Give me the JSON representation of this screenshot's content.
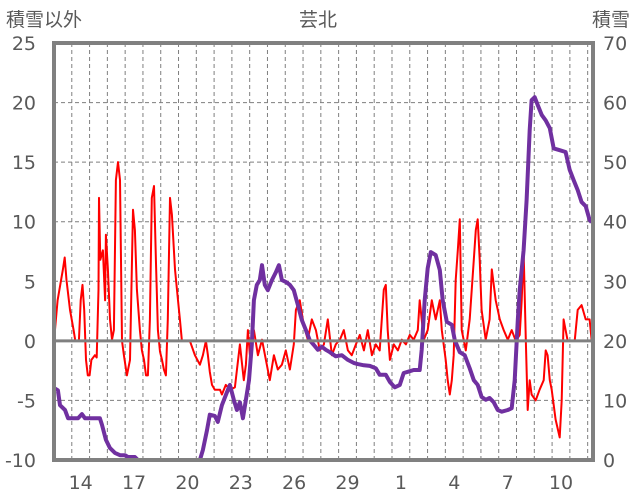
{
  "chart_data": {
    "type": "line",
    "title": "芸北",
    "ylabel_left": "積雪以外",
    "ylabel_right": "積雪",
    "ylim_left": [
      -10,
      25
    ],
    "ylim_right": [
      0,
      70
    ],
    "yticks_left": [
      "25",
      "20",
      "15",
      "10",
      "5",
      "0",
      "-5",
      "-10"
    ],
    "yticks_left_values": [
      25,
      20,
      15,
      10,
      5,
      0,
      -5,
      -10
    ],
    "yticks_right": [
      "70",
      "60",
      "50",
      "40",
      "30",
      "20",
      "10",
      "0"
    ],
    "yticks_right_values": [
      70,
      60,
      50,
      40,
      30,
      20,
      10,
      0
    ],
    "xlim": [
      0.5,
      30.8
    ],
    "xticks": [
      {
        "label": "14",
        "day": 2
      },
      {
        "label": "17",
        "day": 5
      },
      {
        "label": "20",
        "day": 8
      },
      {
        "label": "23",
        "day": 11
      },
      {
        "label": "26",
        "day": 14
      },
      {
        "label": "29",
        "day": 17
      },
      {
        "label": "1",
        "day": 20
      },
      {
        "label": "4",
        "day": 23
      },
      {
        "label": "7",
        "day": 26
      },
      {
        "label": "10",
        "day": 29
      }
    ],
    "grid": true,
    "colors": {
      "other": "#ff0000",
      "snow": "#7030a0",
      "axis": "#808080",
      "grid": "#7f7f7f",
      "text": "#595959"
    },
    "series": [
      {
        "name": "積雪以外",
        "axis": "left",
        "points": [
          [
            0.5,
            0
          ],
          [
            0.7,
            3.4
          ],
          [
            1.0,
            6
          ],
          [
            1.1,
            7
          ],
          [
            1.2,
            5.1
          ],
          [
            1.4,
            2.6
          ],
          [
            1.6,
            0.9
          ],
          [
            1.7,
            0
          ],
          [
            1.9,
            0
          ],
          [
            2.0,
            3.4
          ],
          [
            2.1,
            4.7
          ],
          [
            2.2,
            2.6
          ],
          [
            2.3,
            -1.6
          ],
          [
            2.4,
            -2.9
          ],
          [
            2.5,
            -2.9
          ],
          [
            2.6,
            -1.6
          ],
          [
            2.8,
            -1.2
          ],
          [
            2.9,
            -1.4
          ],
          [
            3.0,
            4.3
          ],
          [
            3.03,
            12
          ],
          [
            3.1,
            6.8
          ],
          [
            3.25,
            7.6
          ],
          [
            3.37,
            3.4
          ],
          [
            3.42,
            8.9
          ],
          [
            3.53,
            6
          ],
          [
            3.65,
            1.8
          ],
          [
            3.76,
            0.1
          ],
          [
            3.87,
            0.9
          ],
          [
            3.98,
            13.5
          ],
          [
            4.1,
            15
          ],
          [
            4.21,
            13.5
          ],
          [
            4.32,
            0
          ],
          [
            4.43,
            -1.2
          ],
          [
            4.6,
            -2.9
          ],
          [
            4.77,
            -1.6
          ],
          [
            4.94,
            11
          ],
          [
            5.05,
            9.3
          ],
          [
            5.16,
            4.3
          ],
          [
            5.33,
            0.9
          ],
          [
            5.44,
            -0.8
          ],
          [
            5.56,
            -1.6
          ],
          [
            5.67,
            -2.9
          ],
          [
            5.78,
            -2.9
          ],
          [
            5.89,
            1.8
          ],
          [
            6.0,
            12
          ],
          [
            6.12,
            13
          ],
          [
            6.23,
            6.8
          ],
          [
            6.34,
            0.9
          ],
          [
            6.46,
            -0.9
          ],
          [
            6.57,
            -1.6
          ],
          [
            6.68,
            -2.4
          ],
          [
            6.79,
            -2.9
          ],
          [
            6.9,
            1.8
          ],
          [
            7.02,
            12
          ],
          [
            7.13,
            10.6
          ],
          [
            7.3,
            6
          ],
          [
            7.47,
            3.4
          ],
          [
            7.58,
            1.8
          ],
          [
            7.69,
            0
          ],
          [
            8.14,
            0
          ],
          [
            8.42,
            -1.2
          ],
          [
            8.7,
            -2
          ],
          [
            8.87,
            -1.2
          ],
          [
            9.04,
            0
          ],
          [
            9.15,
            -1.2
          ],
          [
            9.26,
            -2.6
          ],
          [
            9.38,
            -3.7
          ],
          [
            9.54,
            -4.1
          ],
          [
            9.83,
            -4.1
          ],
          [
            9.94,
            -4.5
          ],
          [
            10.16,
            -3.7
          ],
          [
            10.39,
            -4.1
          ],
          [
            10.67,
            -3.9
          ],
          [
            10.95,
            -0.3
          ],
          [
            11.17,
            -3.3
          ],
          [
            11.29,
            -2
          ],
          [
            11.4,
            0.9
          ],
          [
            11.51,
            -1.2
          ],
          [
            11.74,
            0.9
          ],
          [
            11.96,
            -1.2
          ],
          [
            12.19,
            0.1
          ],
          [
            12.41,
            -1.6
          ],
          [
            12.63,
            -3.3
          ],
          [
            12.86,
            -1.2
          ],
          [
            13.08,
            -2.4
          ],
          [
            13.31,
            -2
          ],
          [
            13.53,
            -0.8
          ],
          [
            13.76,
            -2.4
          ],
          [
            13.98,
            -0.3
          ],
          [
            14.1,
            2.6
          ],
          [
            14.32,
            3.4
          ],
          [
            14.54,
            1.3
          ],
          [
            14.77,
            0.1
          ],
          [
            14.99,
            1.8
          ],
          [
            15.22,
            0.9
          ],
          [
            15.44,
            -0.8
          ],
          [
            15.67,
            -0.3
          ],
          [
            15.89,
            1.8
          ],
          [
            16.12,
            -1.2
          ],
          [
            16.34,
            -0.3
          ],
          [
            16.57,
            0.1
          ],
          [
            16.79,
            0.9
          ],
          [
            17.02,
            -0.8
          ],
          [
            17.24,
            -1.2
          ],
          [
            17.47,
            -0.3
          ],
          [
            17.69,
            0.5
          ],
          [
            17.92,
            -0.8
          ],
          [
            18.14,
            0.9
          ],
          [
            18.37,
            -1.2
          ],
          [
            18.59,
            -0.3
          ],
          [
            18.81,
            -0.8
          ],
          [
            19.04,
            4.3
          ],
          [
            19.15,
            4.7
          ],
          [
            19.26,
            0.9
          ],
          [
            19.38,
            -1.6
          ],
          [
            19.6,
            -0.3
          ],
          [
            19.83,
            -0.8
          ],
          [
            20.05,
            0.1
          ],
          [
            20.28,
            -0.3
          ],
          [
            20.5,
            0.5
          ],
          [
            20.72,
            0.1
          ],
          [
            20.95,
            0.9
          ],
          [
            21.06,
            3.4
          ],
          [
            21.17,
            1.8
          ],
          [
            21.29,
            0.1
          ],
          [
            21.51,
            0.9
          ],
          [
            21.74,
            3.4
          ],
          [
            21.96,
            1.8
          ],
          [
            22.19,
            3.4
          ],
          [
            22.3,
            0.9
          ],
          [
            22.52,
            -1.6
          ],
          [
            22.63,
            -3.3
          ],
          [
            22.75,
            -4.5
          ],
          [
            22.86,
            -3.3
          ],
          [
            22.97,
            -1.2
          ],
          [
            23.08,
            5.1
          ],
          [
            23.2,
            7.6
          ],
          [
            23.31,
            10.2
          ],
          [
            23.42,
            0.9
          ],
          [
            23.65,
            -0.8
          ],
          [
            23.87,
            1.8
          ],
          [
            24.1,
            6.8
          ],
          [
            24.21,
            9.3
          ],
          [
            24.32,
            10.2
          ],
          [
            24.43,
            6.8
          ],
          [
            24.54,
            2.6
          ],
          [
            24.77,
            0.1
          ],
          [
            24.99,
            1.8
          ],
          [
            25.11,
            6
          ],
          [
            25.33,
            3.4
          ],
          [
            25.56,
            1.8
          ],
          [
            25.78,
            0.9
          ],
          [
            26.01,
            0.1
          ],
          [
            26.23,
            0.9
          ],
          [
            26.46,
            0
          ],
          [
            26.68,
            0.5
          ],
          [
            26.79,
            3.4
          ],
          [
            26.9,
            7.6
          ],
          [
            27.02,
            0.1
          ],
          [
            27.13,
            -5.8
          ],
          [
            27.24,
            -3.3
          ],
          [
            27.35,
            -4.5
          ],
          [
            27.58,
            -5
          ],
          [
            27.8,
            -4.1
          ],
          [
            28.03,
            -3.3
          ],
          [
            28.14,
            -0.8
          ],
          [
            28.25,
            -1.2
          ],
          [
            28.37,
            -3.3
          ],
          [
            28.48,
            -4.1
          ],
          [
            28.7,
            -6.6
          ],
          [
            28.93,
            -8.1
          ],
          [
            29.04,
            -5
          ],
          [
            29.15,
            1.8
          ],
          [
            29.26,
            0.9
          ],
          [
            29.38,
            0
          ],
          [
            29.77,
            0
          ],
          [
            29.94,
            2.6
          ],
          [
            30.16,
            3
          ],
          [
            30.39,
            1.8
          ],
          [
            30.61,
            1.8
          ],
          [
            30.72,
            0.1
          ]
        ]
      },
      {
        "name": "積雪",
        "axis": "right",
        "points": [
          [
            0.5,
            12.1
          ],
          [
            0.72,
            11.7
          ],
          [
            0.84,
            9.2
          ],
          [
            1.12,
            8.4
          ],
          [
            1.29,
            7
          ],
          [
            1.85,
            7
          ],
          [
            2.07,
            7.7
          ],
          [
            2.24,
            7
          ],
          [
            3.08,
            7
          ],
          [
            3.2,
            5.9
          ],
          [
            3.42,
            3.4
          ],
          [
            3.65,
            2
          ],
          [
            3.93,
            1.2
          ],
          [
            4.21,
            0.8
          ],
          [
            4.49,
            0.8
          ],
          [
            4.66,
            0.5
          ],
          [
            5.05,
            0.5
          ],
          [
            5.22,
            0
          ],
          [
            8.7,
            0
          ],
          [
            8.87,
            1.7
          ],
          [
            9.1,
            5
          ],
          [
            9.26,
            7.6
          ],
          [
            9.54,
            7.4
          ],
          [
            9.71,
            6.4
          ],
          [
            9.94,
            9.2
          ],
          [
            10.16,
            10.9
          ],
          [
            10.39,
            12.6
          ],
          [
            10.61,
            10.1
          ],
          [
            10.78,
            8.4
          ],
          [
            10.95,
            9.7
          ],
          [
            11.12,
            7
          ],
          [
            11.29,
            10.1
          ],
          [
            11.46,
            13.4
          ],
          [
            11.62,
            19.3
          ],
          [
            11.74,
            26.8
          ],
          [
            11.9,
            29.4
          ],
          [
            12.07,
            30.2
          ],
          [
            12.19,
            32.7
          ],
          [
            12.35,
            29.4
          ],
          [
            12.52,
            28.5
          ],
          [
            12.75,
            30.2
          ],
          [
            12.97,
            31.5
          ],
          [
            13.14,
            32.7
          ],
          [
            13.31,
            30.2
          ],
          [
            13.53,
            29.9
          ],
          [
            13.76,
            29.4
          ],
          [
            13.98,
            28.5
          ],
          [
            14.21,
            26
          ],
          [
            14.43,
            23.5
          ],
          [
            14.66,
            21.8
          ],
          [
            14.88,
            20.1
          ],
          [
            15.11,
            19.3
          ],
          [
            15.33,
            18.5
          ],
          [
            15.56,
            19
          ],
          [
            15.78,
            18.5
          ],
          [
            16.01,
            18.1
          ],
          [
            16.34,
            17.4
          ],
          [
            16.68,
            17.6
          ],
          [
            17.02,
            16.8
          ],
          [
            17.35,
            16.3
          ],
          [
            17.58,
            16.1
          ],
          [
            17.92,
            15.9
          ],
          [
            18.25,
            15.8
          ],
          [
            18.59,
            15.4
          ],
          [
            18.81,
            14.3
          ],
          [
            19.15,
            14.3
          ],
          [
            19.38,
            13.1
          ],
          [
            19.66,
            12.2
          ],
          [
            19.94,
            12.6
          ],
          [
            20.16,
            14.6
          ],
          [
            20.39,
            14.8
          ],
          [
            20.72,
            15.1
          ],
          [
            21.06,
            15.1
          ],
          [
            21.17,
            18.5
          ],
          [
            21.34,
            26.8
          ],
          [
            21.51,
            32.2
          ],
          [
            21.68,
            34.9
          ],
          [
            21.96,
            34.4
          ],
          [
            22.19,
            31.9
          ],
          [
            22.35,
            26.8
          ],
          [
            22.58,
            23.2
          ],
          [
            22.86,
            22.7
          ],
          [
            23.03,
            20.1
          ],
          [
            23.31,
            18.1
          ],
          [
            23.59,
            17.6
          ],
          [
            23.87,
            15.4
          ],
          [
            24.1,
            13.4
          ],
          [
            24.32,
            12.6
          ],
          [
            24.54,
            10.6
          ],
          [
            24.77,
            10.1
          ],
          [
            24.99,
            10.4
          ],
          [
            25.22,
            9.7
          ],
          [
            25.44,
            8.4
          ],
          [
            25.67,
            8.1
          ],
          [
            26.01,
            8.4
          ],
          [
            26.23,
            8.7
          ],
          [
            26.4,
            13.4
          ],
          [
            26.57,
            23.5
          ],
          [
            26.68,
            28.5
          ],
          [
            26.9,
            35.2
          ],
          [
            27.07,
            43.6
          ],
          [
            27.24,
            55.4
          ],
          [
            27.35,
            60.4
          ],
          [
            27.52,
            60.9
          ],
          [
            27.69,
            59.6
          ],
          [
            27.92,
            57.9
          ],
          [
            28.14,
            57
          ],
          [
            28.37,
            55.7
          ],
          [
            28.59,
            52.3
          ],
          [
            28.93,
            52
          ],
          [
            29.26,
            51.7
          ],
          [
            29.49,
            48.7
          ],
          [
            29.71,
            47
          ],
          [
            29.94,
            45.3
          ],
          [
            30.16,
            43.3
          ],
          [
            30.39,
            42.6
          ],
          [
            30.61,
            40.3
          ],
          [
            30.72,
            39.9
          ]
        ]
      }
    ]
  }
}
